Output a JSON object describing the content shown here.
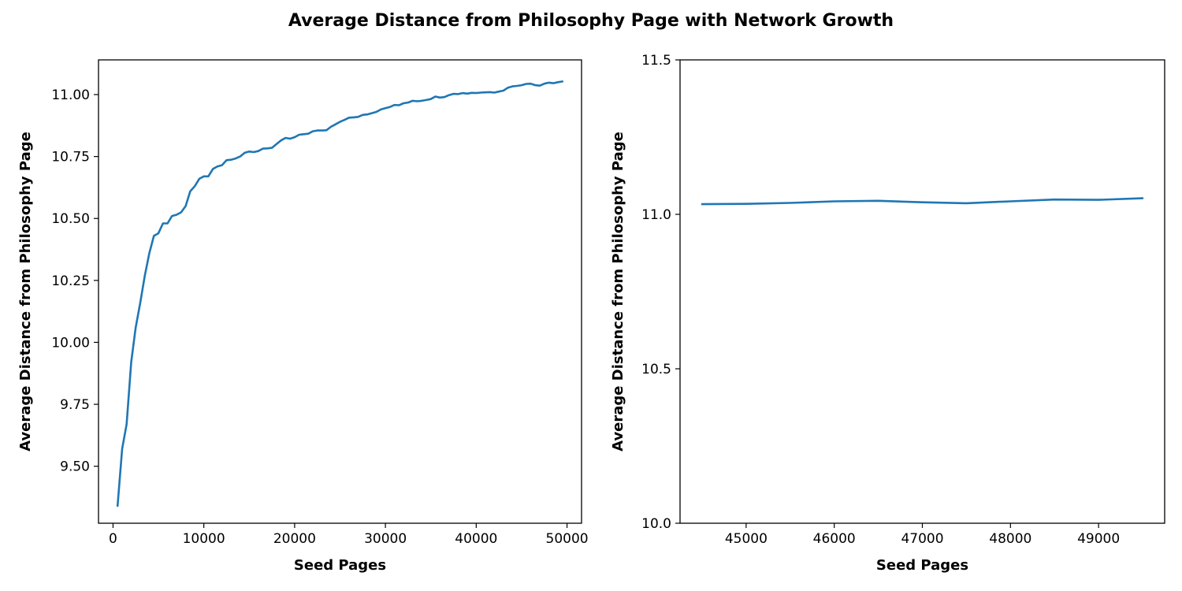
{
  "suptitle": "Average Distance from Philosophy Page with Network Growth",
  "series_color": "#1f77b4",
  "chart_data": [
    {
      "type": "line",
      "xlabel": "Seed Pages",
      "ylabel": "Average Distance from Philosophy Page",
      "xlim": [
        -1600,
        51600
      ],
      "ylim": [
        9.27,
        11.14
      ],
      "xticks": [
        0,
        10000,
        20000,
        30000,
        40000,
        50000
      ],
      "xtick_labels": [
        "0",
        "10000",
        "20000",
        "30000",
        "40000",
        "50000"
      ],
      "yticks": [
        9.5,
        9.75,
        10.0,
        10.25,
        10.5,
        10.75,
        11.0
      ],
      "ytick_labels": [
        "9.50",
        "9.75",
        "10.00",
        "10.25",
        "10.50",
        "10.75",
        "11.00"
      ],
      "x": [
        500,
        1000,
        1500,
        2000,
        2500,
        3000,
        3500,
        4000,
        4500,
        5000,
        5500,
        6000,
        6500,
        7000,
        7500,
        8000,
        8500,
        9000,
        9500,
        10000,
        10500,
        11000,
        11500,
        12000,
        12500,
        13000,
        13500,
        14000,
        14500,
        15000,
        15500,
        16000,
        16500,
        17000,
        17500,
        18000,
        18500,
        19000,
        19500,
        20000,
        20500,
        21000,
        21500,
        22000,
        22500,
        23000,
        23500,
        24000,
        24500,
        25000,
        25500,
        26000,
        26500,
        27000,
        27500,
        28000,
        28500,
        29000,
        29500,
        30000,
        30500,
        31000,
        31500,
        32000,
        32500,
        33000,
        33500,
        34000,
        34500,
        35000,
        35500,
        36000,
        36500,
        37000,
        37500,
        38000,
        38500,
        39000,
        39500,
        40000,
        40500,
        41000,
        41500,
        42000,
        42500,
        43000,
        43500,
        44000,
        44500,
        45000,
        45500,
        46000,
        46500,
        47000,
        47500,
        48000,
        48500,
        49000,
        49500
      ],
      "y": [
        9.34,
        9.57,
        9.67,
        9.92,
        10.06,
        10.16,
        10.27,
        10.36,
        10.43,
        10.44,
        10.48,
        10.48,
        10.51,
        10.515,
        10.525,
        10.55,
        10.61,
        10.63,
        10.66,
        10.67,
        10.67,
        10.7,
        10.71,
        10.715,
        10.735,
        10.737,
        10.742,
        10.75,
        10.765,
        10.77,
        10.768,
        10.772,
        10.782,
        10.783,
        10.785,
        10.8,
        10.815,
        10.825,
        10.822,
        10.828,
        10.838,
        10.84,
        10.842,
        10.852,
        10.855,
        10.855,
        10.856,
        10.87,
        10.88,
        10.89,
        10.898,
        10.907,
        10.908,
        10.91,
        10.918,
        10.92,
        10.925,
        10.93,
        10.94,
        10.945,
        10.95,
        10.958,
        10.957,
        10.965,
        10.968,
        10.975,
        10.973,
        10.975,
        10.978,
        10.982,
        10.992,
        10.988,
        10.99,
        10.998,
        11.003,
        11.002,
        11.006,
        11.004,
        11.007,
        11.006,
        11.008,
        11.009,
        11.01,
        11.008,
        11.012,
        11.016,
        11.028,
        11.033,
        11.035,
        11.038,
        11.043,
        11.044,
        11.038,
        11.036,
        11.044,
        11.048,
        11.046,
        11.05,
        11.053
      ]
    },
    {
      "type": "line",
      "xlabel": "Seed Pages",
      "ylabel": "Average Distance from Philosophy Page",
      "xlim": [
        44250,
        49750
      ],
      "ylim": [
        10.0,
        11.5
      ],
      "xticks": [
        45000,
        46000,
        47000,
        48000,
        49000
      ],
      "xtick_labels": [
        "45000",
        "46000",
        "47000",
        "48000",
        "49000"
      ],
      "yticks": [
        10.0,
        10.5,
        11.0,
        11.5
      ],
      "ytick_labels": [
        "10.0",
        "10.5",
        "11.0",
        "11.5"
      ],
      "x": [
        44500,
        45000,
        45500,
        46000,
        46500,
        47000,
        47500,
        48000,
        48500,
        49000,
        49500
      ],
      "y": [
        11.033,
        11.034,
        11.037,
        11.042,
        11.044,
        11.039,
        11.036,
        11.042,
        11.048,
        11.047,
        11.052
      ]
    }
  ]
}
